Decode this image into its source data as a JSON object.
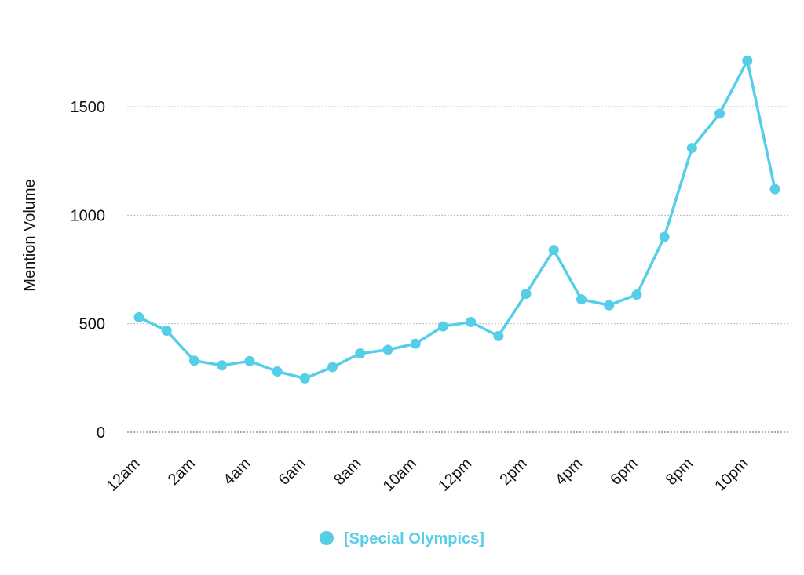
{
  "chart_data": {
    "type": "line",
    "ylabel": "Mention Volume",
    "categories": [
      "12am",
      "1am",
      "2am",
      "3am",
      "4am",
      "5am",
      "6am",
      "7am",
      "8am",
      "9am",
      "10am",
      "11am",
      "12pm",
      "1pm",
      "2pm",
      "3pm",
      "4pm",
      "5pm",
      "6pm",
      "7pm",
      "8pm",
      "9pm",
      "10pm",
      "11pm"
    ],
    "x_tick_labels": [
      "12am",
      "2am",
      "4am",
      "6am",
      "8am",
      "10am",
      "12pm",
      "2pm",
      "4pm",
      "6pm",
      "8pm",
      "10pm"
    ],
    "y_ticks": [
      0,
      500,
      1000,
      1500
    ],
    "ylim": [
      0,
      1500
    ],
    "grid": true,
    "legend_position": "bottom-center",
    "series": [
      {
        "name": "[Special Olympics]",
        "color": "#57cee8",
        "values": [
          530,
          468,
          330,
          308,
          328,
          280,
          248,
          300,
          363,
          380,
          408,
          488,
          508,
          443,
          638,
          840,
          612,
          585,
          634,
          900,
          1310,
          1468,
          1712,
          1120
        ]
      }
    ]
  }
}
